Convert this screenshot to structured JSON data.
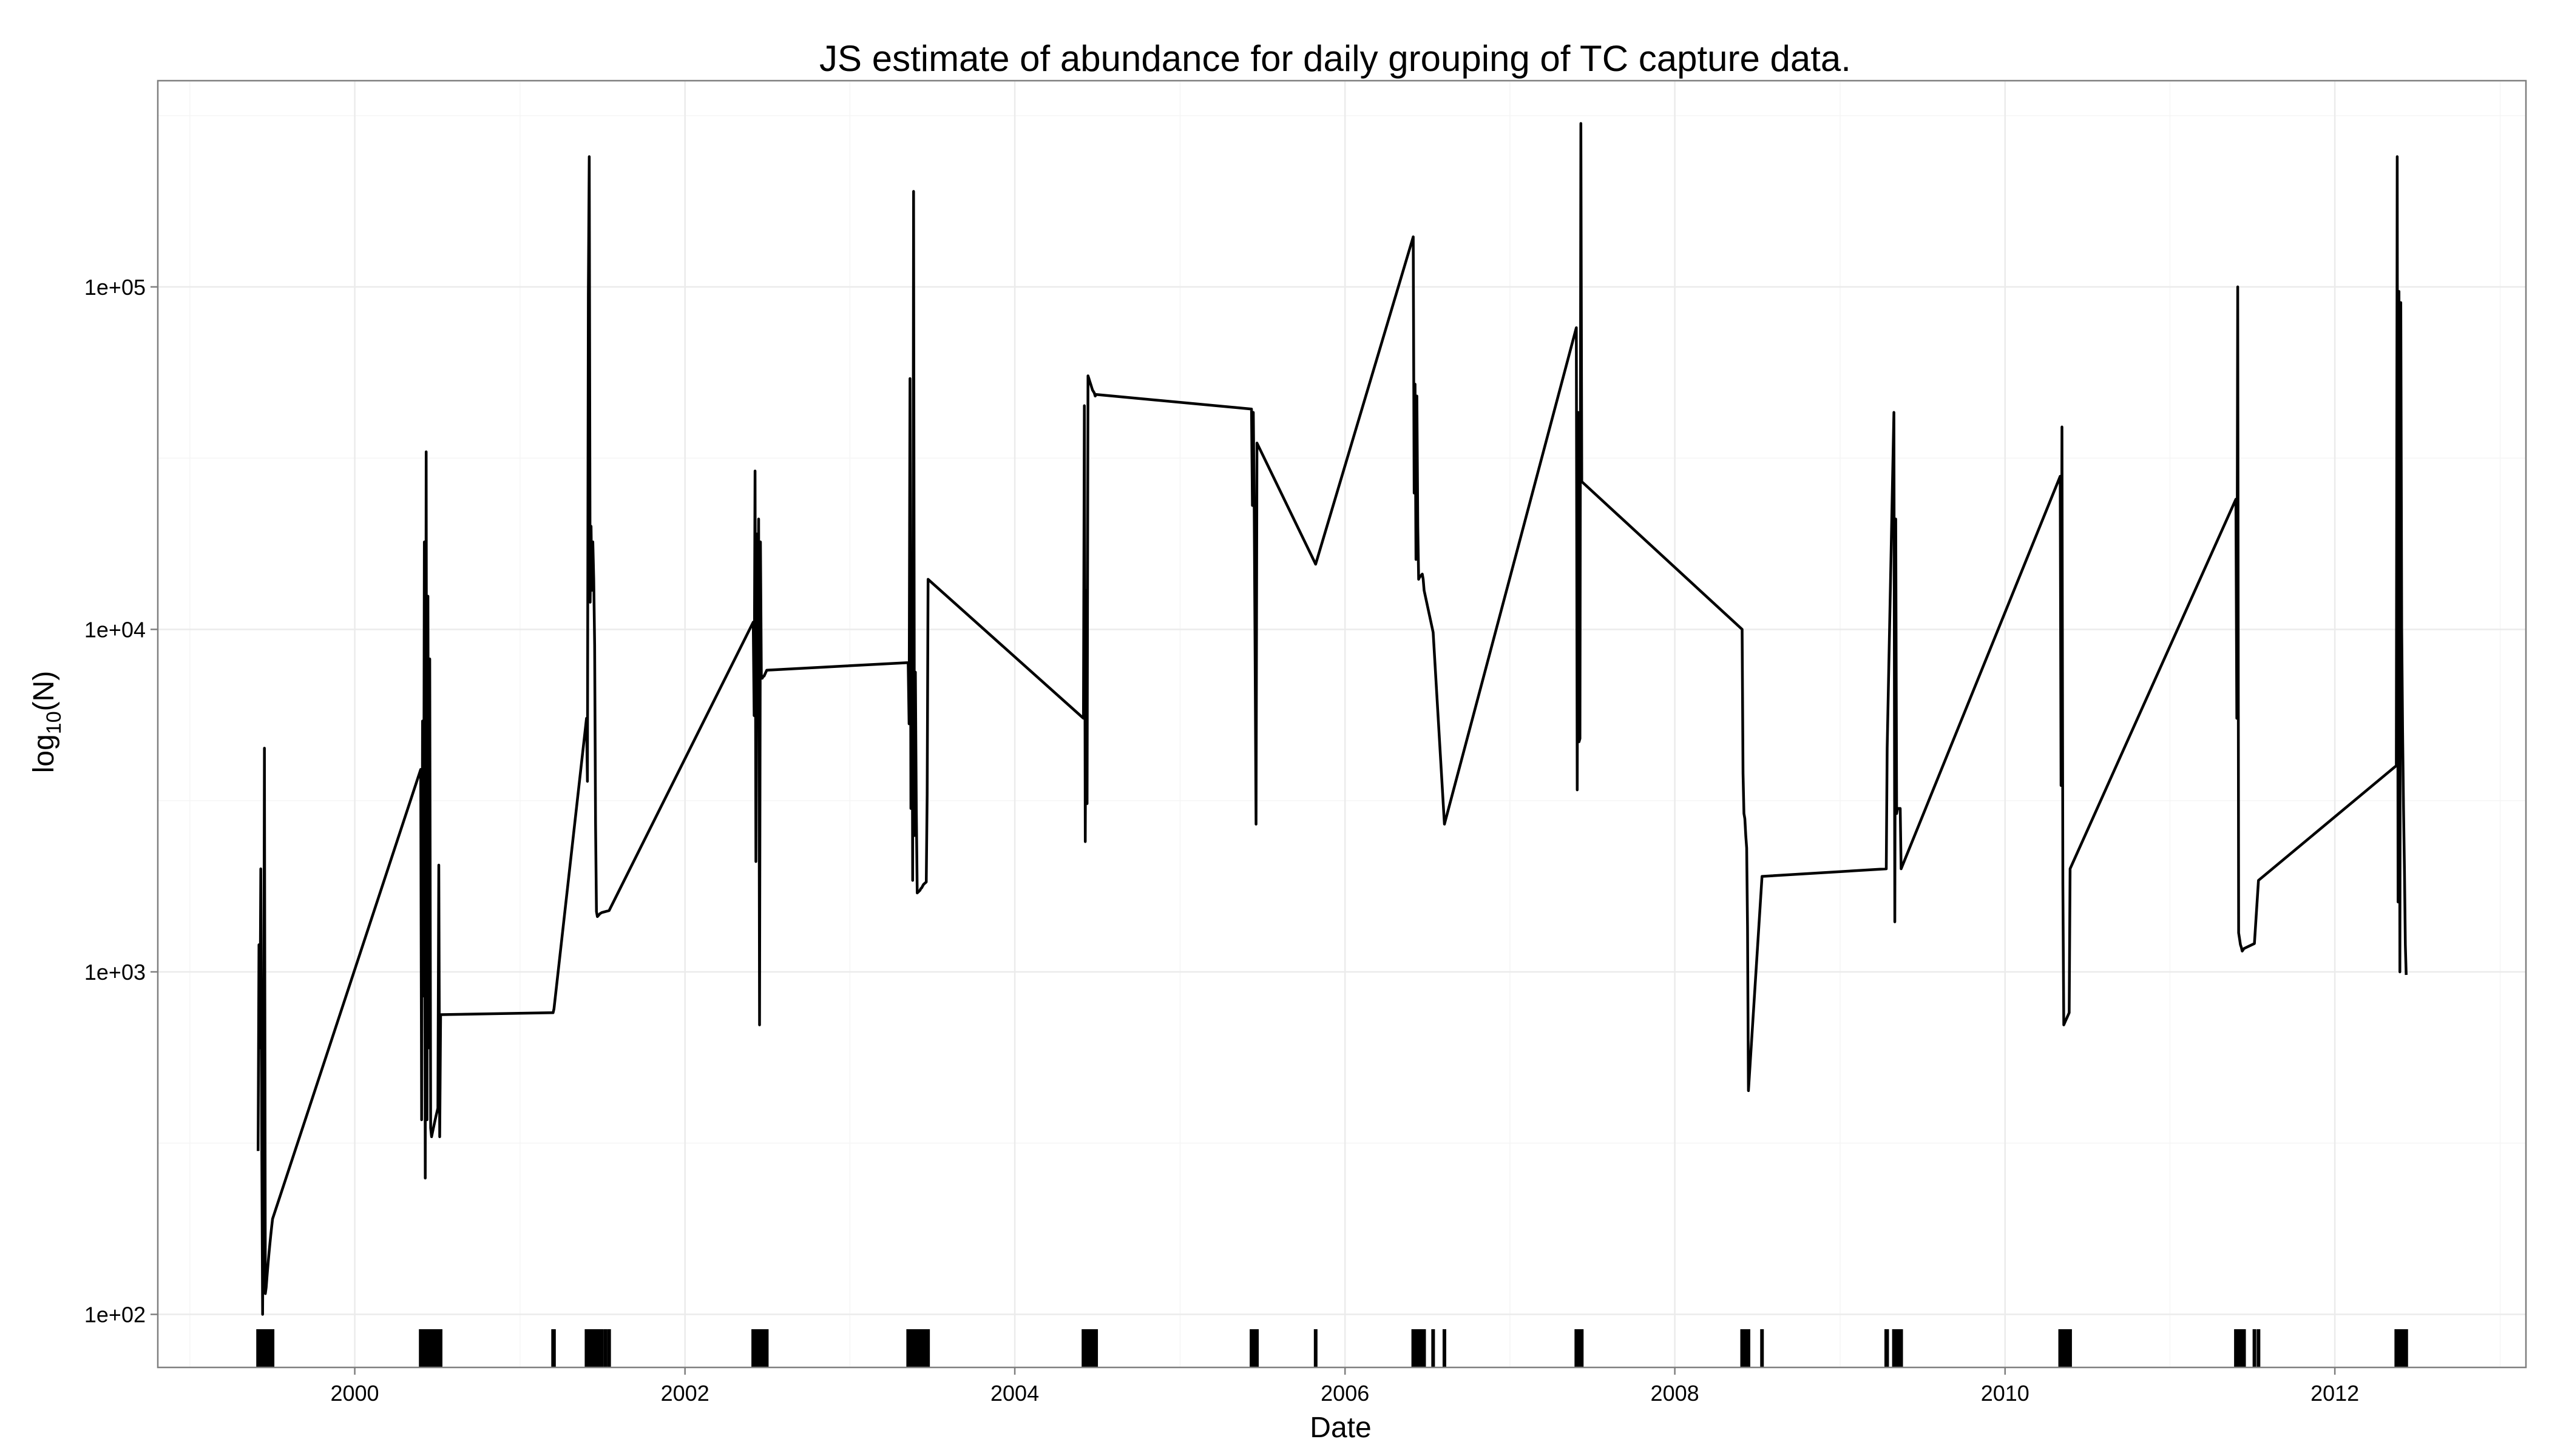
{
  "chart_data": {
    "type": "line",
    "title": "JS estimate of abundance for daily grouping of TC capture data.",
    "xlabel": "Date",
    "ylabel": {
      "prefix": "log",
      "subscript": "10",
      "suffix": "(N)"
    },
    "y_scale": "log10",
    "ylim": [
      70,
      400000
    ],
    "xlim": [
      "1998-10-22",
      "2013-02-27"
    ],
    "grid": true,
    "x_ticks": [
      "2000",
      "2002",
      "2004",
      "2006",
      "2008",
      "2010",
      "2012"
    ],
    "y_ticks": [
      "1e+02",
      "1e+03",
      "1e+04",
      "1e+05"
    ],
    "series": [
      {
        "x": [
          "1999-06-01",
          "1999-06-03",
          "1999-06-05",
          "1999-06-07",
          "1999-06-09",
          "1999-06-11",
          "1999-06-13",
          "1999-06-15",
          "1999-06-17",
          "1999-06-19",
          "1999-06-21",
          "1999-06-23",
          "1999-06-25",
          "1999-06-27",
          "1999-06-29",
          "1999-07-01",
          "1999-07-03",
          "2000-05-26",
          "2000-05-28",
          "2000-05-30",
          "2000-06-01",
          "2000-06-03",
          "2000-06-05",
          "2000-06-07",
          "2000-06-09",
          "2000-06-11",
          "2000-06-13",
          "2000-06-15",
          "2000-06-17",
          "2000-06-19",
          "2000-06-21",
          "2000-06-23",
          "2000-06-25",
          "2000-06-27",
          "2000-06-29",
          "2000-07-01",
          "2000-07-03",
          "2000-07-05",
          "2000-07-07",
          "2000-07-09",
          "2001-03-15",
          "2001-03-16",
          "2001-03-17",
          "2001-05-28",
          "2001-05-30",
          "2001-06-01",
          "2001-06-03",
          "2001-06-05",
          "2001-06-07",
          "2001-06-09",
          "2001-06-11",
          "2001-06-13",
          "2001-06-15",
          "2001-06-17",
          "2001-06-19",
          "2001-06-21",
          "2001-06-23",
          "2001-06-25",
          "2001-06-27",
          "2001-07-01",
          "2001-07-09",
          "2001-07-17",
          "2002-06-01",
          "2002-06-03",
          "2002-06-05",
          "2002-06-07",
          "2002-06-09",
          "2002-06-11",
          "2002-06-13",
          "2002-06-15",
          "2002-06-17",
          "2002-06-19",
          "2002-06-21",
          "2002-06-23",
          "2002-06-25",
          "2002-06-27",
          "2002-06-29",
          "2002-07-01",
          "2003-05-10",
          "2003-05-12",
          "2003-05-14",
          "2003-05-16",
          "2003-05-18",
          "2003-05-20",
          "2003-05-22",
          "2003-05-24",
          "2003-05-26",
          "2003-05-28",
          "2003-05-30",
          "2003-06-01",
          "2003-06-03",
          "2003-06-05",
          "2003-06-07",
          "2003-06-09",
          "2003-06-11",
          "2003-06-13",
          "2003-06-15",
          "2003-06-17",
          "2003-06-19",
          "2003-06-21",
          "2003-06-23",
          "2004-06-01",
          "2004-06-03",
          "2004-06-05",
          "2004-06-07",
          "2004-06-09",
          "2004-06-11",
          "2004-06-13",
          "2004-06-15",
          "2004-06-17",
          "2004-06-19",
          "2004-06-21",
          "2004-06-23",
          "2004-06-25",
          "2004-06-27",
          "2004-06-29",
          "2005-06-08",
          "2005-06-10",
          "2005-06-12",
          "2005-06-14",
          "2005-06-16",
          "2005-06-18",
          "2005-06-20",
          "2005-10-28",
          "2006-06-01",
          "2006-06-03",
          "2006-06-05",
          "2006-06-07",
          "2006-06-09",
          "2006-06-11",
          "2006-06-13",
          "2006-06-15",
          "2006-06-17",
          "2006-06-19",
          "2006-06-21",
          "2006-06-23",
          "2006-06-25",
          "2006-07-15",
          "2006-08-09",
          "2007-05-28",
          "2007-05-30",
          "2007-06-01",
          "2007-06-03",
          "2007-06-05",
          "2007-06-07",
          "2007-06-09",
          "2008-05-29",
          "2008-05-31",
          "2008-06-02",
          "2008-06-04",
          "2008-06-06",
          "2008-06-08",
          "2008-06-10",
          "2008-06-12",
          "2008-07-12",
          "2009-04-13",
          "2009-04-15",
          "2009-04-30",
          "2009-05-02",
          "2009-05-04",
          "2009-05-06",
          "2009-05-08",
          "2009-05-10",
          "2009-05-12",
          "2009-05-14",
          "2009-05-16",
          "2010-05-03",
          "2010-05-05",
          "2010-05-07",
          "2010-05-09",
          "2010-05-11",
          "2010-05-13",
          "2010-05-15",
          "2010-05-17",
          "2010-05-19",
          "2010-05-21",
          "2010-05-23",
          "2010-05-25",
          "2011-05-27",
          "2011-05-29",
          "2011-05-31",
          "2011-06-02",
          "2011-06-04",
          "2011-06-06",
          "2011-06-08",
          "2011-06-10",
          "2011-06-12",
          "2011-06-14",
          "2011-07-07",
          "2011-07-16",
          "2012-05-16",
          "2012-05-18",
          "2012-05-20",
          "2012-05-22",
          "2012-05-24",
          "2012-05-26",
          "2012-05-28",
          "2012-05-30",
          "2012-06-01",
          "2012-06-03",
          "2012-06-05",
          "2012-06-07"
        ],
        "y": [
          300,
          1200,
          600,
          2000,
          350,
          100,
          300,
          4500,
          115,
          120,
          130,
          140,
          150,
          160,
          170,
          180,
          190,
          3900,
          370,
          5400,
          850,
          18000,
          250,
          33000,
          370,
          12500,
          600,
          8200,
          350,
          330,
          340,
          350,
          360,
          370,
          380,
          390,
          400,
          2050,
          330,
          750,
          760,
          770,
          780,
          5500,
          3600,
          95000,
          240000,
          12000,
          20000,
          13000,
          18000,
          14000,
          9000,
          2700,
          1500,
          1450,
          1460,
          1470,
          1480,
          1490,
          1500,
          1510,
          10500,
          5600,
          29000,
          2100,
          19000,
          8000,
          21000,
          700,
          18000,
          7200,
          7200,
          7300,
          7300,
          7400,
          7500,
          7600,
          8000,
          5300,
          54000,
          3000,
          14000,
          1850,
          190000,
          2500,
          7500,
          3000,
          1700,
          1710,
          1720,
          1730,
          1750,
          1760,
          1780,
          1800,
          1810,
          1820,
          1830,
          3300,
          14000,
          5500,
          45000,
          2400,
          13000,
          3100,
          55000,
          54000,
          53000,
          52000,
          51000,
          50000,
          49500,
          49000,
          48000,
          48500,
          44000,
          23000,
          43000,
          22000,
          8000,
          2700,
          35000,
          15500,
          140000,
          25000,
          52000,
          16000,
          48000,
          20000,
          14000,
          14200,
          14300,
          14400,
          14500,
          14000,
          13000,
          9800,
          2700,
          76000,
          3400,
          43000,
          4700,
          4800,
          300000,
          27000,
          10000,
          3800,
          2900,
          2800,
          2500,
          2300,
          1350,
          450,
          1900,
          2000,
          4500,
          43000,
          1400,
          21000,
          2900,
          3000,
          3000,
          3000,
          3000,
          2000,
          28000,
          3500,
          39000,
          1800,
          700,
          710,
          720,
          730,
          740,
          750,
          760,
          2000,
          24000,
          5500,
          100000,
          1300,
          1250,
          1200,
          1180,
          1150,
          1160,
          1170,
          1210,
          1850,
          4000,
          240000,
          1600,
          97000,
          1000,
          90000,
          10000,
          5000,
          3000,
          2000,
          1200,
          980
        ]
      }
    ],
    "rug_dates": [
      "1999-06-01",
      "1999-06-03",
      "1999-06-05",
      "1999-06-07",
      "1999-06-09",
      "1999-06-11",
      "1999-06-13",
      "1999-06-15",
      "1999-06-17",
      "1999-06-19",
      "1999-06-21",
      "1999-06-23",
      "1999-06-25",
      "1999-06-27",
      "1999-06-29",
      "1999-07-01",
      "1999-07-03",
      "2000-05-26",
      "2000-05-28",
      "2000-05-30",
      "2000-06-01",
      "2000-06-03",
      "2000-06-05",
      "2000-06-07",
      "2000-06-09",
      "2000-06-11",
      "2000-06-13",
      "2000-06-15",
      "2000-06-17",
      "2000-06-19",
      "2000-06-21",
      "2000-06-23",
      "2000-06-25",
      "2000-06-27",
      "2000-06-29",
      "2000-07-01",
      "2000-07-03",
      "2000-07-05",
      "2000-07-07",
      "2000-07-09",
      "2001-03-15",
      "2001-03-16",
      "2001-03-17",
      "2001-05-28",
      "2001-05-30",
      "2001-06-01",
      "2001-06-03",
      "2001-06-05",
      "2001-06-07",
      "2001-06-09",
      "2001-06-11",
      "2001-06-13",
      "2001-06-15",
      "2001-06-17",
      "2001-06-19",
      "2001-06-21",
      "2001-06-23",
      "2001-06-25",
      "2001-06-27",
      "2001-07-01",
      "2001-07-09",
      "2001-07-17",
      "2002-06-01",
      "2002-06-03",
      "2002-06-05",
      "2002-06-07",
      "2002-06-09",
      "2002-06-11",
      "2002-06-13",
      "2002-06-15",
      "2002-06-17",
      "2002-06-19",
      "2002-06-21",
      "2002-06-23",
      "2002-06-25",
      "2002-06-27",
      "2002-06-29",
      "2002-07-01",
      "2003-05-10",
      "2003-05-12",
      "2003-05-14",
      "2003-05-16",
      "2003-05-18",
      "2003-05-20",
      "2003-05-22",
      "2003-05-24",
      "2003-05-26",
      "2003-05-28",
      "2003-05-30",
      "2003-06-01",
      "2003-06-03",
      "2003-06-05",
      "2003-06-07",
      "2003-06-09",
      "2003-06-11",
      "2003-06-13",
      "2003-06-15",
      "2003-06-17",
      "2003-06-19",
      "2003-06-21",
      "2003-06-23",
      "2004-06-01",
      "2004-06-03",
      "2004-06-05",
      "2004-06-07",
      "2004-06-09",
      "2004-06-11",
      "2004-06-13",
      "2004-06-15",
      "2004-06-17",
      "2004-06-19",
      "2004-06-21",
      "2004-06-23",
      "2004-06-25",
      "2004-06-27",
      "2004-06-29",
      "2005-06-08",
      "2005-06-10",
      "2005-06-12",
      "2005-06-14",
      "2005-06-16",
      "2005-06-18",
      "2005-06-20",
      "2005-10-28",
      "2006-06-01",
      "2006-06-03",
      "2006-06-05",
      "2006-06-07",
      "2006-06-09",
      "2006-06-11",
      "2006-06-13",
      "2006-06-15",
      "2006-06-17",
      "2006-06-19",
      "2006-06-21",
      "2006-06-23",
      "2006-06-25",
      "2006-07-15",
      "2006-08-09",
      "2007-05-28",
      "2007-05-30",
      "2007-06-01",
      "2007-06-03",
      "2007-06-05",
      "2007-06-07",
      "2007-06-09",
      "2008-05-29",
      "2008-05-31",
      "2008-06-02",
      "2008-06-04",
      "2008-06-06",
      "2008-06-08",
      "2008-06-10",
      "2008-06-12",
      "2008-07-12",
      "2009-04-13",
      "2009-04-15",
      "2009-04-30",
      "2009-05-02",
      "2009-05-04",
      "2009-05-06",
      "2009-05-08",
      "2009-05-10",
      "2009-05-12",
      "2009-05-14",
      "2009-05-16",
      "2010-05-03",
      "2010-05-05",
      "2010-05-07",
      "2010-05-09",
      "2010-05-11",
      "2010-05-13",
      "2010-05-15",
      "2010-05-17",
      "2010-05-19",
      "2010-05-21",
      "2010-05-23",
      "2010-05-25",
      "2011-05-27",
      "2011-05-29",
      "2011-05-31",
      "2011-06-02",
      "2011-06-04",
      "2011-06-06",
      "2011-06-08",
      "2011-06-10",
      "2011-06-12",
      "2011-06-14",
      "2011-07-07",
      "2011-07-16",
      "2012-05-16",
      "2012-05-18",
      "2012-05-20",
      "2012-05-22",
      "2012-05-24",
      "2012-05-26",
      "2012-05-28",
      "2012-05-30",
      "2012-06-01",
      "2012-06-03",
      "2012-06-05",
      "2012-06-07"
    ],
    "colors": {
      "line": "#000000",
      "rug": "#000000",
      "panel_border": "#7f7f7f",
      "major_grid": "#ebebeb",
      "minor_grid": "#f5f5f5"
    }
  }
}
